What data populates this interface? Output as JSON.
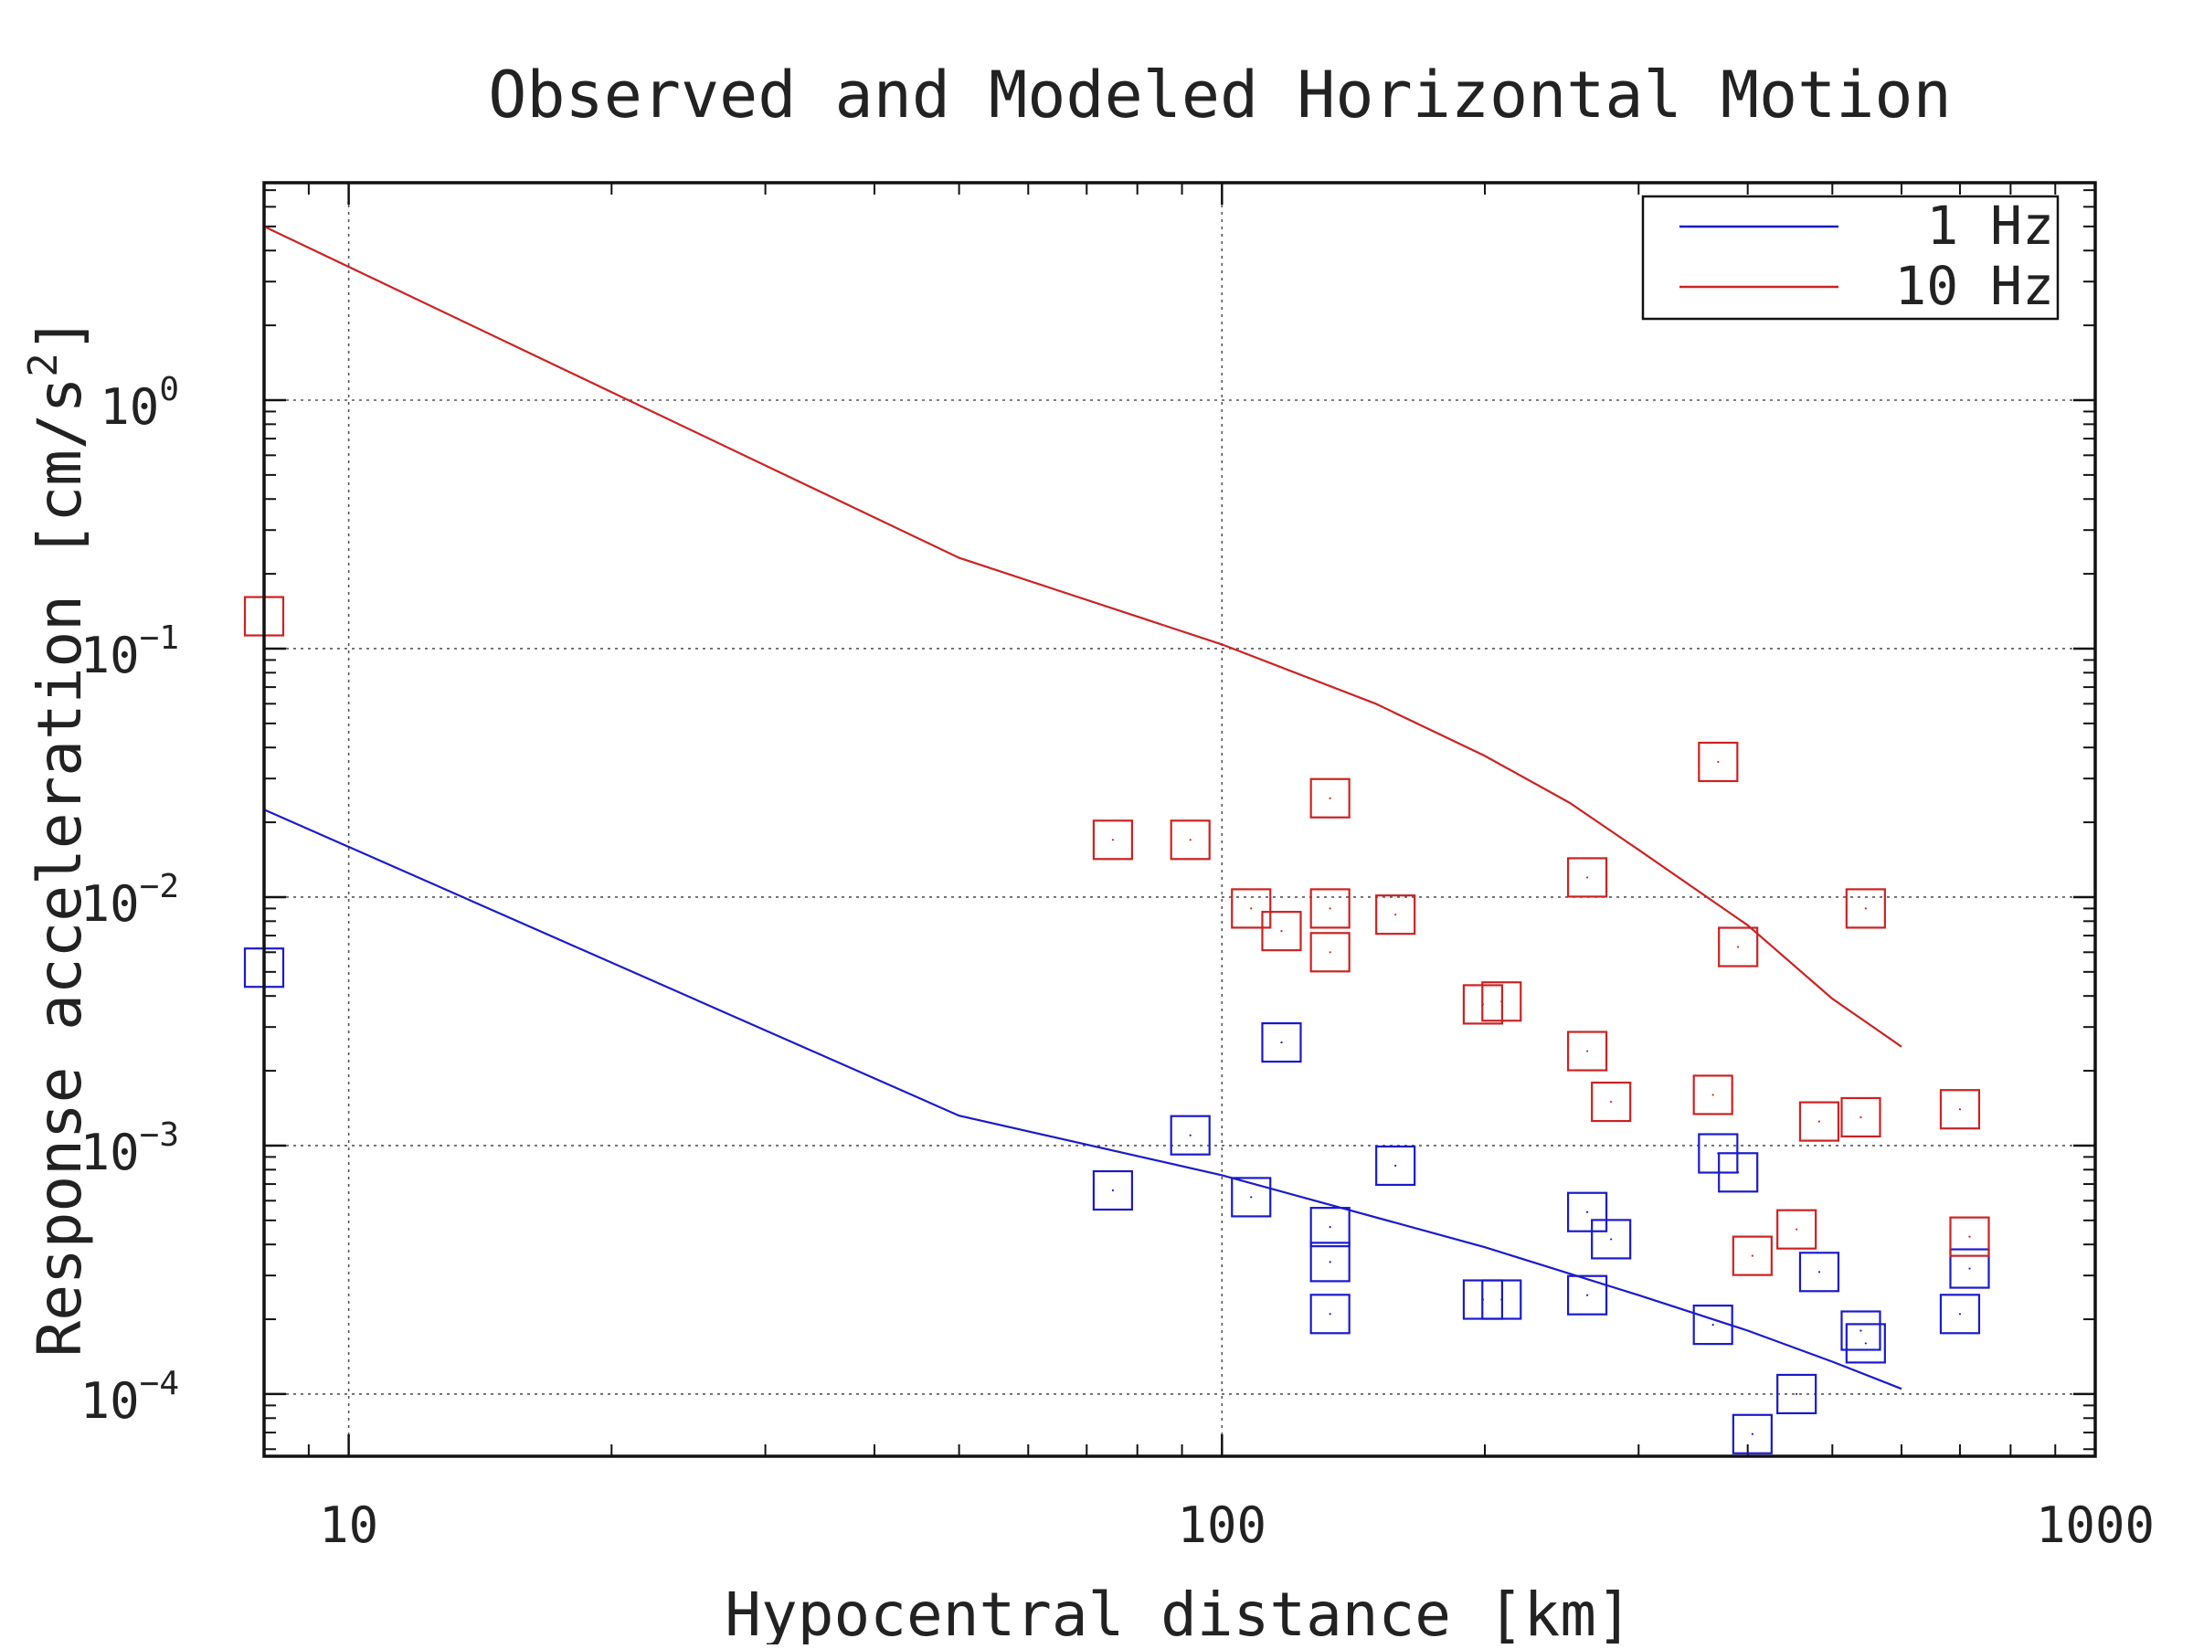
{
  "chart_data": {
    "type": "scatter",
    "title": "Observed and Modeled Horizontal Motion",
    "xlabel": "Hypocentral distance [km]",
    "ylabel_main": "Response acceleration [cm/s",
    "ylabel_sup": "2",
    "ylabel_close": "]",
    "x_scale": "log",
    "y_scale": "log",
    "xlim": [
      8,
      1000
    ],
    "ylim": [
      5.62e-05,
      7.5
    ],
    "grid": true,
    "legend_position": "top-right",
    "x_ticks": [
      {
        "value": 10,
        "label": "10"
      },
      {
        "value": 100,
        "label": "100"
      },
      {
        "value": 1000,
        "label": "1000"
      }
    ],
    "y_ticks": [
      {
        "value": 1,
        "base": "10",
        "exp": "0"
      },
      {
        "value": 0.1,
        "base": "10",
        "exp": "−1"
      },
      {
        "value": 0.01,
        "base": "10",
        "exp": "−2"
      },
      {
        "value": 0.001,
        "base": "10",
        "exp": "−3"
      },
      {
        "value": 0.0001,
        "base": "10",
        "exp": "−4"
      }
    ],
    "series": [
      {
        "name": "1 Hz",
        "color": "#1a1acc",
        "model": [
          [
            8,
            0.0225
          ],
          [
            50,
            0.00132
          ],
          [
            100,
            0.00076
          ],
          [
            200,
            0.00039
          ],
          [
            300,
            0.00025
          ],
          [
            400,
            0.00018
          ],
          [
            500,
            0.000135
          ],
          [
            600,
            0.000105
          ]
        ],
        "observed": [
          [
            8,
            0.0052
          ],
          [
            75,
            0.00066
          ],
          [
            92,
            0.0011
          ],
          [
            108,
            0.00062
          ],
          [
            117,
            0.0026
          ],
          [
            133,
            0.00047
          ],
          [
            133,
            0.00034
          ],
          [
            133,
            0.00021
          ],
          [
            158,
            0.00083
          ],
          [
            199,
            0.00024
          ],
          [
            209,
            0.00024
          ],
          [
            262,
            0.00054
          ],
          [
            262,
            0.00025
          ],
          [
            279,
            0.00042
          ],
          [
            365,
            0.00019
          ],
          [
            370,
            0.00093
          ],
          [
            390,
            0.00078
          ],
          [
            405,
            6.9e-05
          ],
          [
            455,
            0.0001
          ],
          [
            483,
            0.00031
          ],
          [
            539,
            0.00018
          ],
          [
            546,
            0.00016
          ],
          [
            700,
            0.00021
          ],
          [
            718,
            0.00032
          ]
        ]
      },
      {
        "name": "10 Hz",
        "color": "#cc2222",
        "model": [
          [
            8,
            5.0
          ],
          [
            50,
            0.232
          ],
          [
            100,
            0.104
          ],
          [
            150,
            0.06
          ],
          [
            200,
            0.037
          ],
          [
            250,
            0.024
          ],
          [
            300,
            0.0155
          ],
          [
            400,
            0.0077
          ],
          [
            500,
            0.0039
          ],
          [
            600,
            0.0025
          ]
        ],
        "observed": [
          [
            8,
            0.135
          ],
          [
            75,
            0.017
          ],
          [
            92,
            0.017
          ],
          [
            108,
            0.009
          ],
          [
            117,
            0.0073
          ],
          [
            133,
            0.025
          ],
          [
            133,
            0.009
          ],
          [
            133,
            0.006
          ],
          [
            158,
            0.0085
          ],
          [
            199,
            0.0037
          ],
          [
            209,
            0.0038
          ],
          [
            262,
            0.012
          ],
          [
            262,
            0.0024
          ],
          [
            279,
            0.0015
          ],
          [
            365,
            0.0016
          ],
          [
            370,
            0.035
          ],
          [
            390,
            0.0063
          ],
          [
            405,
            0.00036
          ],
          [
            455,
            0.00046
          ],
          [
            483,
            0.00125
          ],
          [
            539,
            0.0013
          ],
          [
            546,
            0.009
          ],
          [
            700,
            0.0014
          ],
          [
            718,
            0.00043
          ]
        ]
      }
    ]
  }
}
